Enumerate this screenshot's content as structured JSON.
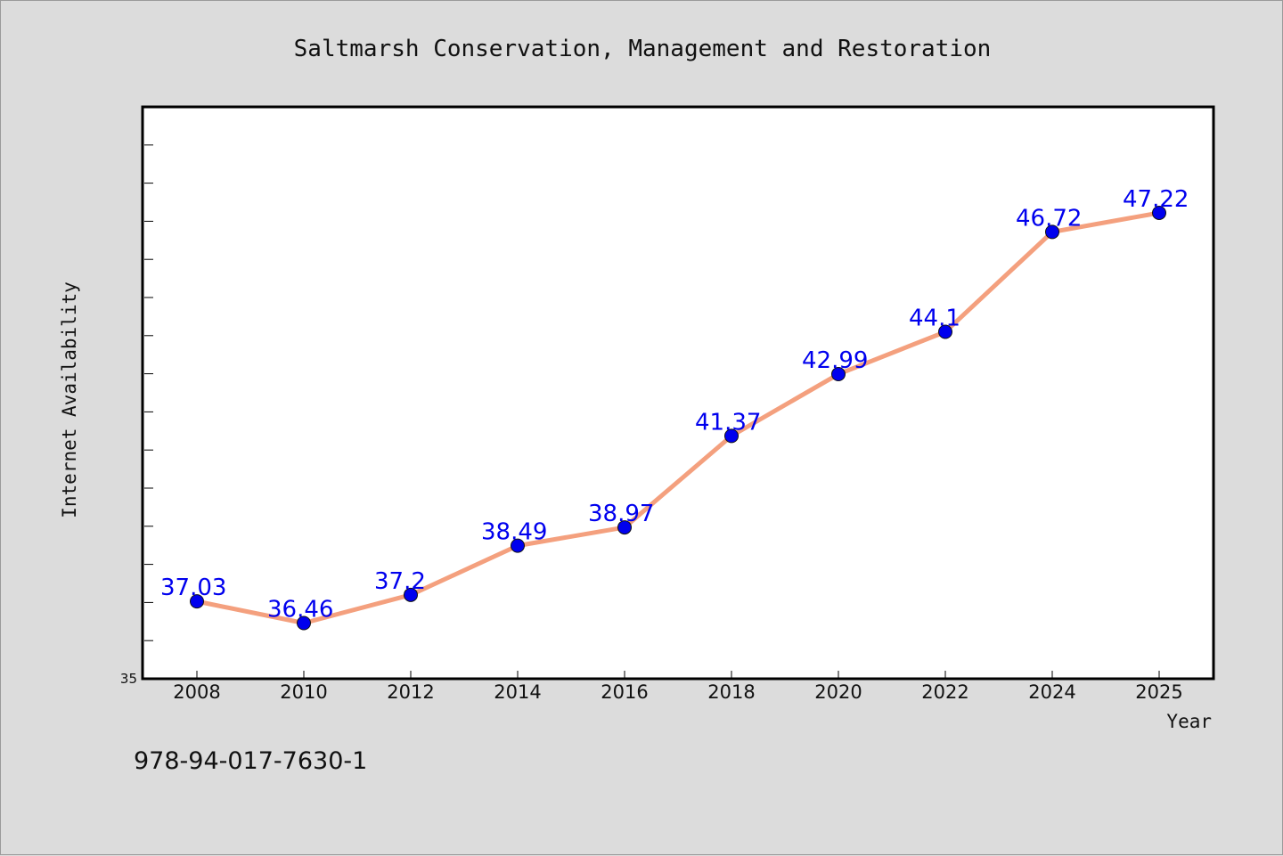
{
  "chart_data": {
    "type": "line",
    "title": "Saltmarsh Conservation, Management and Restoration",
    "xlabel": "Year",
    "ylabel": "Internet Availability",
    "x": [
      "2008",
      "2010",
      "2012",
      "2014",
      "2016",
      "2018",
      "2020",
      "2022",
      "2024",
      "2025"
    ],
    "series": [
      {
        "values": [
          37.03,
          36.46,
          37.2,
          38.49,
          38.97,
          41.37,
          42.99,
          44.1,
          46.72,
          47.22
        ],
        "data_labels": [
          "37.03",
          "36.46",
          "37.2",
          "38.49",
          "38.97",
          "41.37",
          "42.99",
          "44.1",
          "46.72",
          "47.22"
        ],
        "line_color": "#f4a07e",
        "marker_color": "#0000ee",
        "label_color": "#0000ee"
      }
    ],
    "ylim": [
      35,
      50
    ],
    "ytick_labels": [
      "35"
    ],
    "grid": false,
    "legend": "none"
  },
  "footer": {
    "isbn": "978-94-017-7630-1"
  },
  "colors": {
    "background": "#dcdcdc",
    "plot_background": "#ffffff",
    "axis": "#000000"
  }
}
